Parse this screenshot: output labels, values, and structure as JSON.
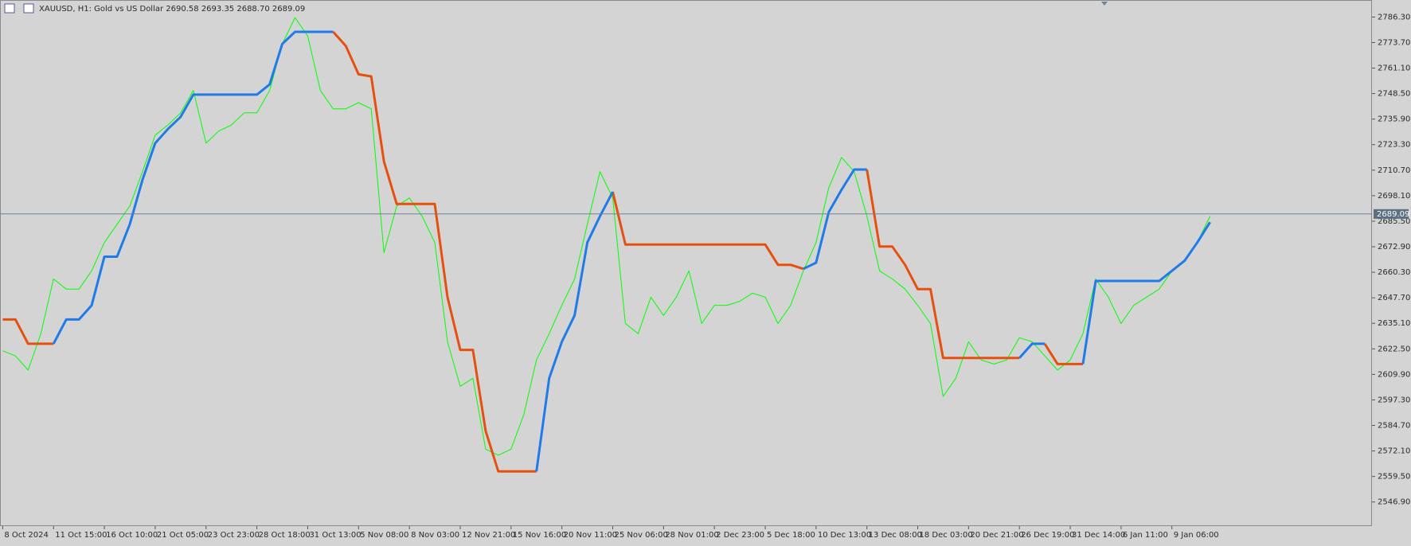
{
  "chart_data": {
    "type": "line",
    "title": "XAUUSD, H1:  Gold vs US Dollar  2690.58 2693.35 2688.70 2689.09",
    "categories": [
      "8 Oct 2024",
      null,
      null,
      null,
      "11 Oct 15:00",
      null,
      null,
      null,
      "16 Oct 10:00",
      null,
      null,
      null,
      "21 Oct 05:00",
      null,
      null,
      null,
      "23 Oct 23:00",
      null,
      null,
      null,
      "28 Oct 18:00",
      null,
      null,
      null,
      "31 Oct 13:00",
      null,
      null,
      null,
      "5 Nov 08:00",
      null,
      null,
      null,
      "8 Nov 03:00",
      null,
      null,
      null,
      "12 Nov 21:00",
      null,
      null,
      null,
      "15 Nov 16:00",
      null,
      null,
      null,
      "20 Nov 11:00",
      null,
      null,
      null,
      "25 Nov 06:00",
      null,
      null,
      null,
      "28 Nov 01:00",
      null,
      null,
      null,
      "2 Dec 23:00",
      null,
      null,
      null,
      "5 Dec 18:00",
      null,
      null,
      null,
      "10 Dec 13:00",
      null,
      null,
      null,
      "13 Dec 08:00",
      null,
      null,
      null,
      "18 Dec 03:00",
      null,
      null,
      null,
      "20 Dec 21:00",
      null,
      null,
      null,
      "26 Dec 19:00",
      null,
      null,
      null,
      "31 Dec 14:00",
      null,
      null,
      null,
      "6 Jan 11:00",
      null,
      null,
      null,
      "9 Jan 06:00",
      null,
      null,
      null
    ],
    "series": [
      {
        "color": "#00ff00",
        "width": 1,
        "values": [
          2621.5,
          2619,
          2612,
          2630,
          2657,
          2652,
          2652,
          2661,
          2675,
          2684,
          2693,
          2710,
          2728,
          2733,
          2739,
          2750,
          2724,
          2730,
          2733,
          2739,
          2739,
          2750,
          2773,
          2786,
          2777,
          2750,
          2741,
          2741,
          2744,
          2741,
          2670,
          2693,
          2697,
          2688,
          2675,
          2626,
          2604,
          2608,
          2573,
          2570,
          2573,
          2590,
          2617,
          2630,
          2644,
          2657,
          2684,
          2710,
          2697,
          2635,
          2630,
          2648,
          2639,
          2648,
          2661,
          2635,
          2644,
          2644,
          2646,
          2650,
          2648,
          2635,
          2644,
          2661,
          2675,
          2702,
          2717,
          2710,
          2688,
          2661,
          2657,
          2652,
          2644,
          2635,
          2599,
          2608,
          2626,
          2617,
          2615,
          2617,
          2628,
          2626,
          2619,
          2612,
          2617,
          2630,
          2657,
          2648,
          2635,
          2644,
          2648,
          2652,
          2661,
          2666,
          2675,
          2688
        ]
      },
      {
        "color": "#e5500f",
        "width": 3,
        "values": [
          2637,
          2637,
          2625,
          2625,
          2625,
          null,
          null,
          null,
          null,
          null,
          null,
          null,
          null,
          null,
          null,
          null,
          null,
          null,
          null,
          null,
          null,
          null,
          null,
          null,
          null,
          null,
          2779,
          2772,
          2758,
          2757,
          2715,
          2694,
          2694,
          2694,
          2694,
          2648,
          2622,
          2622,
          2582,
          2562,
          2562,
          2562,
          2562,
          null,
          null,
          null,
          null,
          null,
          2700,
          2674,
          2674,
          2674,
          2674,
          2674,
          2674,
          2674,
          2674,
          2674,
          2674,
          2674,
          2674,
          2664,
          2664,
          2662,
          null,
          null,
          null,
          null,
          2711,
          2673,
          2673,
          2664,
          2652,
          2652,
          2618,
          2618,
          2618,
          2618,
          2618,
          2618,
          2618,
          null,
          2625,
          2615,
          2615,
          2615,
          null,
          null,
          null,
          null,
          null,
          null,
          null,
          null,
          null,
          null
        ]
      },
      {
        "color": "#1e7be8",
        "width": 3,
        "values": [
          null,
          null,
          null,
          null,
          2625,
          2637,
          2637,
          2644,
          2668,
          2668,
          2684,
          2706,
          2724,
          2731,
          2737,
          2748,
          2748,
          2748,
          2748,
          2748,
          2748,
          2753,
          2773,
          2779,
          2779,
          2779,
          2779,
          null,
          null,
          null,
          null,
          null,
          null,
          null,
          null,
          null,
          null,
          null,
          null,
          null,
          null,
          null,
          2562,
          2608,
          2626,
          2639,
          2675,
          2688,
          2700,
          null,
          null,
          null,
          null,
          null,
          null,
          null,
          null,
          null,
          null,
          null,
          null,
          null,
          null,
          2662,
          2665,
          2690,
          2701,
          2711,
          2711,
          null,
          null,
          null,
          null,
          null,
          null,
          null,
          null,
          null,
          null,
          null,
          2618,
          2625,
          2625,
          null,
          null,
          2615,
          2656,
          2656,
          2656,
          2656,
          2656,
          2656,
          2661,
          2666,
          2675,
          2685
        ]
      }
    ],
    "current_price": {
      "value": 2689.09,
      "label": "2689.09"
    },
    "ylim": [
      2535,
      2794.7
    ],
    "yticks": [
      {
        "value": 2546.9,
        "label": "2546.90"
      },
      {
        "value": 2559.5,
        "label": "2559.50"
      },
      {
        "value": 2572.1,
        "label": "2572.10"
      },
      {
        "value": 2584.7,
        "label": "2584.70"
      },
      {
        "value": 2597.3,
        "label": "2597.30"
      },
      {
        "value": 2609.9,
        "label": "2609.90"
      },
      {
        "value": 2622.5,
        "label": "2622.50"
      },
      {
        "value": 2635.1,
        "label": "2635.10"
      },
      {
        "value": 2647.7,
        "label": "2647.70"
      },
      {
        "value": 2660.3,
        "label": "2660.30"
      },
      {
        "value": 2672.9,
        "label": "2672.90"
      },
      {
        "value": 2685.5,
        "label": "2685.50"
      },
      {
        "value": 2698.1,
        "label": "2698.10"
      },
      {
        "value": 2710.7,
        "label": "2710.70"
      },
      {
        "value": 2723.3,
        "label": "2723.30"
      },
      {
        "value": 2735.9,
        "label": "2735.90"
      },
      {
        "value": 2748.5,
        "label": "2748.50"
      },
      {
        "value": 2761.1,
        "label": "2761.10"
      },
      {
        "value": 2773.7,
        "label": "2773.70"
      },
      {
        "value": 2786.3,
        "label": "2786.30"
      }
    ],
    "grid": false
  }
}
